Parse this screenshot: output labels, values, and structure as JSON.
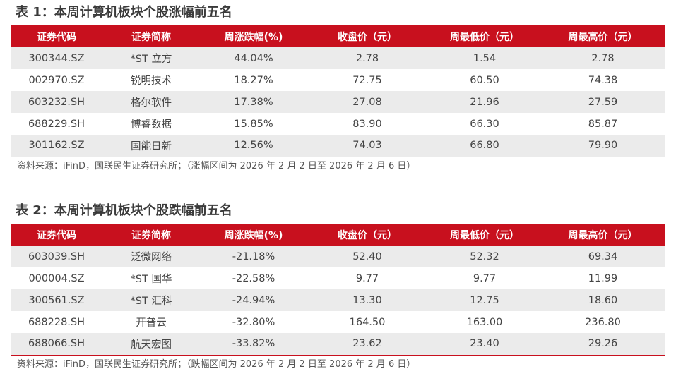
{
  "tables": [
    {
      "title": "表 1：本周计算机板块个股涨幅前五名",
      "headers": [
        "证券代码",
        "证券简称",
        "周涨跌幅(%)",
        "收盘价（元）",
        "周最低价（元）",
        "周最高价（元）"
      ],
      "rows": [
        [
          "300344.SZ",
          "*ST 立方",
          "44.04%",
          "2.78",
          "1.54",
          "2.78"
        ],
        [
          "002970.SZ",
          "锐明技术",
          "18.27%",
          "72.75",
          "60.50",
          "74.38"
        ],
        [
          "603232.SH",
          "格尔软件",
          "17.38%",
          "27.08",
          "21.96",
          "27.59"
        ],
        [
          "688229.SH",
          "博睿数据",
          "15.85%",
          "83.90",
          "66.30",
          "85.87"
        ],
        [
          "301162.SZ",
          "国能日新",
          "12.56%",
          "74.03",
          "66.80",
          "79.90"
        ]
      ],
      "source": "资料来源：iFinD，国联民生证券研究所；（涨幅区间为 2026 年 2 月 2 日至 2026 年 2 月 6 日）"
    },
    {
      "title": "表 2：本周计算机板块个股跌幅前五名",
      "headers": [
        "证券代码",
        "证券简称",
        "周涨跌幅(%)",
        "收盘价（元）",
        "周最低价（元）",
        "周最高价（元）"
      ],
      "rows": [
        [
          "603039.SH",
          "泛微网络",
          "-21.18%",
          "52.40",
          "52.32",
          "69.34"
        ],
        [
          "000004.SZ",
          "*ST 国华",
          "-22.58%",
          "9.77",
          "9.77",
          "11.99"
        ],
        [
          "300561.SZ",
          "*ST 汇科",
          "-24.94%",
          "13.30",
          "12.75",
          "18.60"
        ],
        [
          "688228.SH",
          "开普云",
          "-32.80%",
          "164.50",
          "163.00",
          "236.80"
        ],
        [
          "688066.SH",
          "航天宏图",
          "-33.82%",
          "23.62",
          "23.40",
          "29.26"
        ]
      ],
      "source": "资料来源：iFinD，国联民生证券研究所；（跌幅区间为 2026 年 2 月 2 日至 2026 年 2 月 6 日）"
    }
  ]
}
